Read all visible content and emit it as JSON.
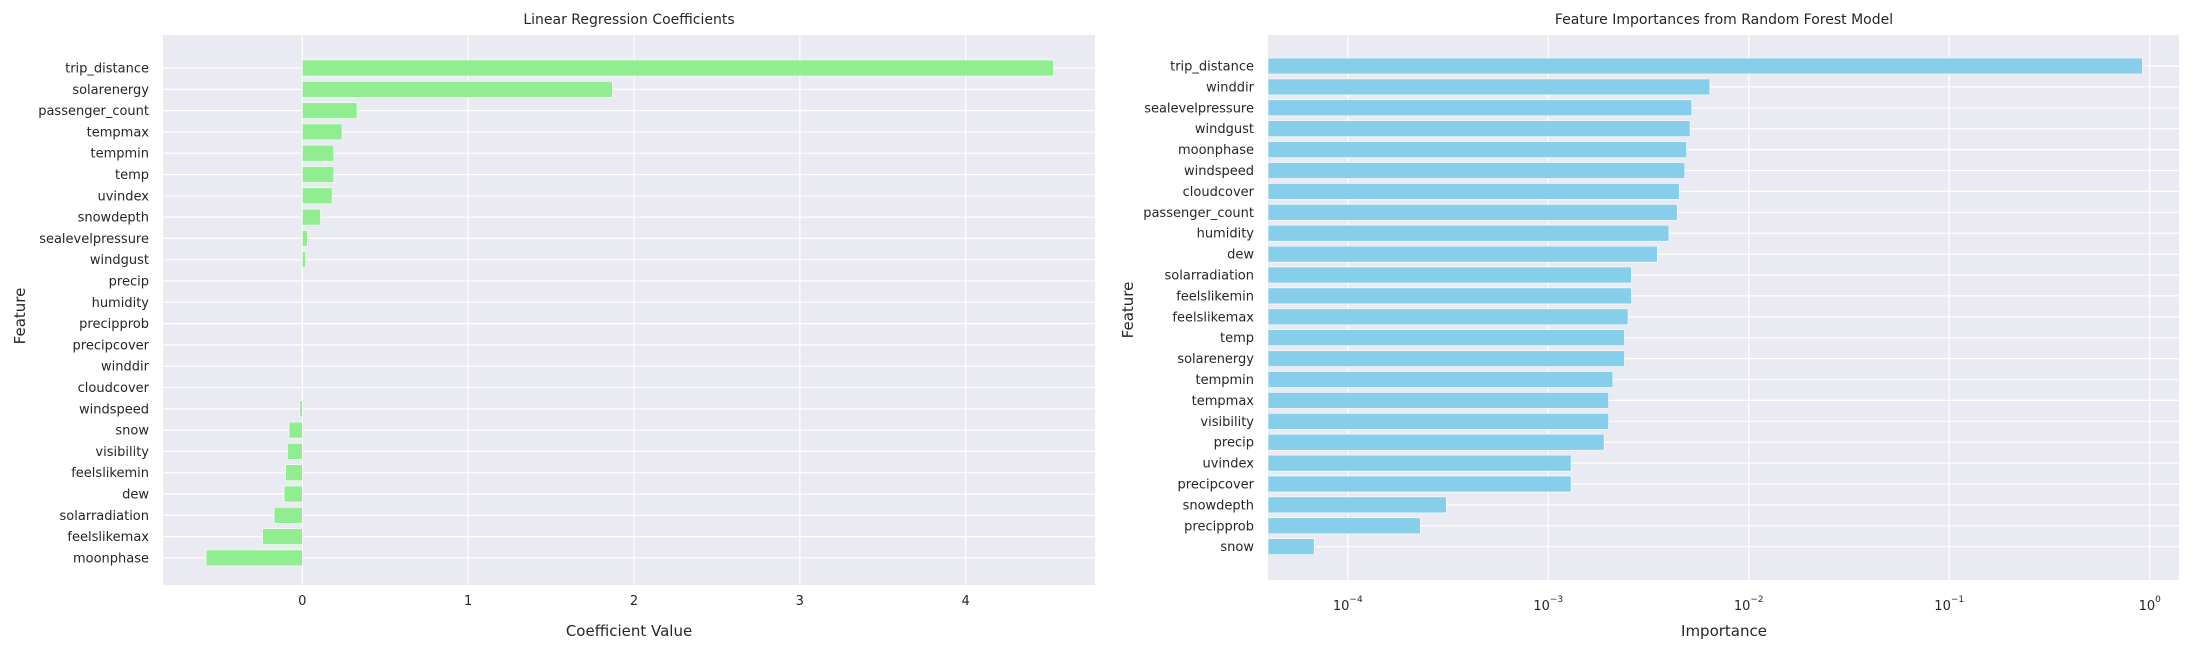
{
  "chart_data": [
    {
      "type": "bar",
      "orientation": "horizontal",
      "title": "Linear Regression Coefficients",
      "xlabel": "Coefficient Value",
      "ylabel": "Feature",
      "xlim": [
        -0.84,
        4.78
      ],
      "xticks": [
        0,
        1,
        2,
        3,
        4
      ],
      "xtick_labels": [
        "0",
        "1",
        "2",
        "3",
        "4"
      ],
      "grid": true,
      "bar_color": "#90ee90",
      "categories": [
        "trip_distance",
        "solarenergy",
        "passenger_count",
        "tempmax",
        "tempmin",
        "temp",
        "uvindex",
        "snowdepth",
        "sealevelpressure",
        "windgust",
        "precip",
        "humidity",
        "precipprob",
        "precipcover",
        "winddir",
        "cloudcover",
        "windspeed",
        "snow",
        "visibility",
        "feelslikemin",
        "dew",
        "solarradiation",
        "feelslikemax",
        "moonphase"
      ],
      "values": [
        4.53,
        1.87,
        0.33,
        0.24,
        0.19,
        0.19,
        0.18,
        0.11,
        0.03,
        0.02,
        0.0,
        0.0,
        0.0,
        0.0,
        0.0,
        -0.005,
        -0.015,
        -0.08,
        -0.09,
        -0.1,
        -0.11,
        -0.17,
        -0.24,
        -0.58
      ]
    },
    {
      "type": "bar",
      "orientation": "horizontal",
      "title": "Feature Importances from Random Forest Model",
      "xlabel": "Importance",
      "ylabel": "Feature",
      "xscale": "log",
      "xlim": [
        4e-05,
        1.4
      ],
      "xtick_exponents": [
        "-4",
        "-3",
        "-2",
        "-1",
        "0"
      ],
      "grid": true,
      "bar_color": "#87ceeb",
      "categories": [
        "trip_distance",
        "winddir",
        "sealevelpressure",
        "windgust",
        "moonphase",
        "windspeed",
        "cloudcover",
        "passenger_count",
        "humidity",
        "dew",
        "solarradiation",
        "feelslikemin",
        "feelslikemax",
        "temp",
        "solarenergy",
        "tempmin",
        "tempmax",
        "visibility",
        "precip",
        "uvindex",
        "precipcover",
        "snowdepth",
        "precipprob",
        "snow"
      ],
      "values": [
        0.92,
        0.0064,
        0.0052,
        0.0051,
        0.0049,
        0.0048,
        0.0045,
        0.0044,
        0.004,
        0.0035,
        0.0026,
        0.0026,
        0.0025,
        0.0024,
        0.0024,
        0.0021,
        0.002,
        0.002,
        0.0019,
        0.0013,
        0.0013,
        0.00031,
        0.00023,
        6.8e-05
      ]
    }
  ]
}
